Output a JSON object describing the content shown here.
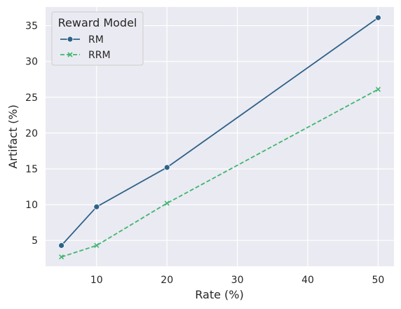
{
  "chart_data": {
    "type": "line",
    "xlabel": "Rate (%)",
    "ylabel": "Artifact (%)",
    "x": [
      5,
      10,
      20,
      50
    ],
    "xticks": [
      10,
      20,
      30,
      40,
      50
    ],
    "yticks": [
      5,
      10,
      15,
      20,
      25,
      30,
      35
    ],
    "xlim": [
      2.75,
      52.25
    ],
    "ylim": [
      1.4,
      37.6
    ],
    "grid": true,
    "legend": {
      "title": "Reward Model",
      "placement": "top-left"
    },
    "series": [
      {
        "name": "RM",
        "values": [
          4.3,
          9.7,
          15.2,
          36.1
        ],
        "color": "#2e6288",
        "marker": "circle",
        "dash": "solid"
      },
      {
        "name": "RRM",
        "values": [
          2.7,
          4.3,
          10.2,
          26.1
        ],
        "color": "#3fb66f",
        "marker": "x",
        "dash": "dashed"
      }
    ]
  }
}
